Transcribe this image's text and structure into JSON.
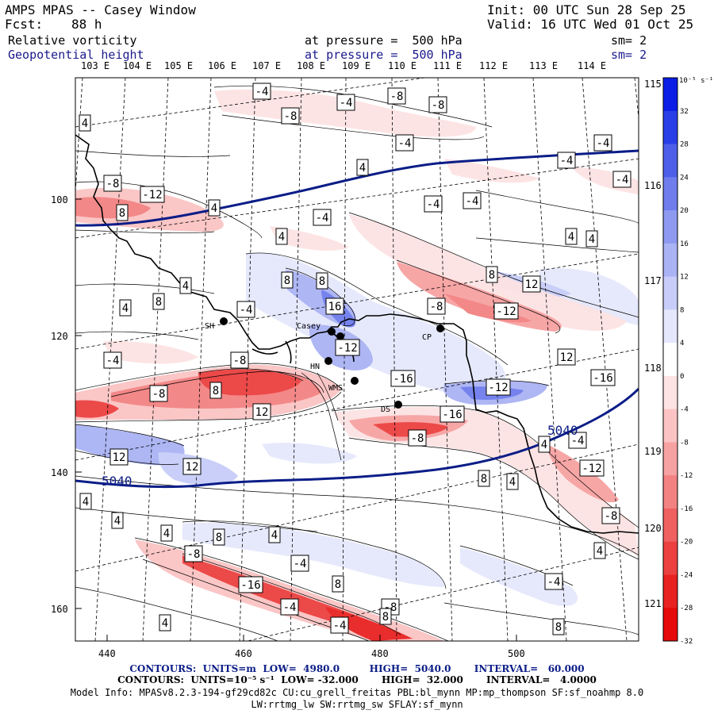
{
  "header": {
    "title": "AMPS MPAS -- Casey Window",
    "init": "Init: 00 UTC Sun 28 Sep 25",
    "fcst_label": "Fcst:",
    "fcst_value": "88 h",
    "valid": "Valid: 16 UTC Wed 01 Oct 25",
    "field1": "Relative vorticity",
    "field1_level": "at pressure =  500 hPa",
    "field1_sm": "sm= 2",
    "field2": "Geopotential height",
    "field2_level": "at pressure =  500 hPa",
    "field2_sm": "sm= 2"
  },
  "top_lon_labels": [
    "103 E",
    "104 E",
    "105 E",
    "106 E",
    "107 E",
    "108 E",
    "109 E",
    "110 E",
    "111 E",
    "112 E",
    "113 E",
    "114 E"
  ],
  "right_lon_labels": [
    "115 E",
    "116 E",
    "117 E",
    "118 E",
    "119 E",
    "120 E",
    "121 E"
  ],
  "x_axis_labels": [
    "440",
    "460",
    "480",
    "500"
  ],
  "y_axis_labels": [
    "100",
    "120",
    "140",
    "160"
  ],
  "colorbar": {
    "unit": "10⁻⁵ s⁻¹",
    "values": [
      "32",
      "28",
      "24",
      "20",
      "16",
      "12",
      "8",
      "4",
      "0",
      "-4",
      "-8",
      "-12",
      "-16",
      "-20",
      "-24",
      "-28",
      "-32"
    ],
    "colors": [
      "#0a1ee6",
      "#2a3ee8",
      "#4d5fe9",
      "#6f7ded",
      "#8e9af0",
      "#aab3f4",
      "#c7cdf8",
      "#e5e8fc",
      "#ffffff",
      "#fde3e3",
      "#fbc3c3",
      "#f7a2a2",
      "#f38282",
      "#ef6060",
      "#ec4040",
      "#e82121",
      "#e60a0a"
    ]
  },
  "stations": [
    "SH",
    "Casey",
    "HN",
    "DS",
    "CP",
    "WMS"
  ],
  "contour_labels": [
    "-4",
    "-4",
    "-8",
    "-8",
    "-8",
    "-4",
    "4",
    "4",
    "-4",
    "-4",
    "-4",
    "-8",
    "-12",
    "8",
    "4",
    "-4",
    "-4",
    "-4",
    "4",
    "4",
    "4",
    "8",
    "12",
    "4",
    "8",
    "8",
    "16",
    "-8",
    "-12",
    "4",
    "8",
    "-4",
    "-4",
    "-8",
    "12",
    "-12",
    "-16",
    "-8",
    "8",
    "12",
    "-16",
    "-12",
    "-16",
    "-8",
    "12",
    "12",
    "5040",
    "5040",
    "8",
    "4",
    "4",
    "-4",
    "-12",
    "-8",
    "4",
    "4",
    "4",
    "8",
    "4",
    "-8",
    "-4",
    "-16",
    "-4",
    "-4",
    "-8",
    "8",
    "8",
    "4",
    "-4",
    "4",
    "8"
  ],
  "height_labels": [
    "5040",
    "5040"
  ],
  "footer": {
    "contours1": "CONTOURS:  UNITS=m  LOW=  4980.0         HIGH=  5040.0       INTERVAL=   60.000",
    "contours2": "CONTOURS:  UNITS=10⁻⁵ s⁻¹  LOW= -32.000       HIGH=  32.000       INTERVAL=   4.0000",
    "model_info": "Model Info: MPASv8.2.3-194-gf29cd82c CU:cu_grell_freitas PBL:bl_mynn MP:mp_thompson SF:sf_noahmp 8.0",
    "model_info2": "LW:rrtmg_lw SW:rrtmg_sw SFLAY:sf_mynn"
  }
}
